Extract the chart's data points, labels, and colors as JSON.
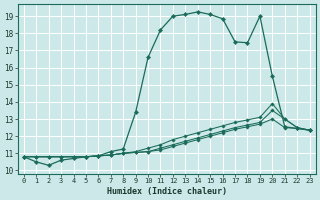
{
  "xlabel": "Humidex (Indice chaleur)",
  "bg_color": "#cce8e8",
  "line_color": "#1a6b5a",
  "grid_color": "#ffffff",
  "xlim": [
    -0.5,
    23.5
  ],
  "ylim": [
    9.8,
    19.7
  ],
  "yticks": [
    10,
    11,
    12,
    13,
    14,
    15,
    16,
    17,
    18,
    19
  ],
  "xticks": [
    0,
    1,
    2,
    3,
    4,
    5,
    6,
    7,
    8,
    9,
    10,
    11,
    12,
    13,
    14,
    15,
    16,
    17,
    18,
    19,
    20,
    21,
    22,
    23
  ],
  "line1_x": [
    0,
    1,
    2,
    3,
    4,
    5,
    6,
    7,
    8,
    9,
    10,
    11,
    12,
    13,
    14,
    15,
    16,
    17,
    18,
    19,
    20,
    21,
    22,
    23
  ],
  "line1_y": [
    10.8,
    10.5,
    10.3,
    10.6,
    10.7,
    10.8,
    10.85,
    11.1,
    11.25,
    13.4,
    16.6,
    18.2,
    19.0,
    19.1,
    19.25,
    19.1,
    18.85,
    17.5,
    17.45,
    19.0,
    15.5,
    12.55,
    12.45,
    12.35
  ],
  "line2_x": [
    0,
    1,
    2,
    3,
    4,
    5,
    6,
    7,
    8,
    9,
    10,
    11,
    12,
    13,
    14,
    15,
    16,
    17,
    18,
    19,
    20,
    21,
    22,
    23
  ],
  "line2_y": [
    10.8,
    10.8,
    10.8,
    10.8,
    10.8,
    10.8,
    10.85,
    10.9,
    11.0,
    11.1,
    11.3,
    11.5,
    11.8,
    12.0,
    12.2,
    12.4,
    12.6,
    12.8,
    12.95,
    13.1,
    13.9,
    13.0,
    12.5,
    12.35
  ],
  "line3_x": [
    0,
    1,
    2,
    3,
    4,
    5,
    6,
    7,
    8,
    9,
    10,
    11,
    12,
    13,
    14,
    15,
    16,
    17,
    18,
    19,
    20,
    21,
    22,
    23
  ],
  "line3_y": [
    10.8,
    10.8,
    10.8,
    10.8,
    10.8,
    10.8,
    10.85,
    10.9,
    11.0,
    11.05,
    11.1,
    11.3,
    11.5,
    11.7,
    11.9,
    12.1,
    12.3,
    12.5,
    12.65,
    12.8,
    13.5,
    13.0,
    12.5,
    12.35
  ],
  "line4_x": [
    0,
    1,
    2,
    3,
    4,
    5,
    6,
    7,
    8,
    9,
    10,
    11,
    12,
    13,
    14,
    15,
    16,
    17,
    18,
    19,
    20,
    21,
    22,
    23
  ],
  "line4_y": [
    10.8,
    10.8,
    10.8,
    10.8,
    10.8,
    10.8,
    10.85,
    10.9,
    11.0,
    11.05,
    11.1,
    11.2,
    11.4,
    11.6,
    11.8,
    12.0,
    12.2,
    12.4,
    12.55,
    12.7,
    13.0,
    12.5,
    12.45,
    12.35
  ]
}
